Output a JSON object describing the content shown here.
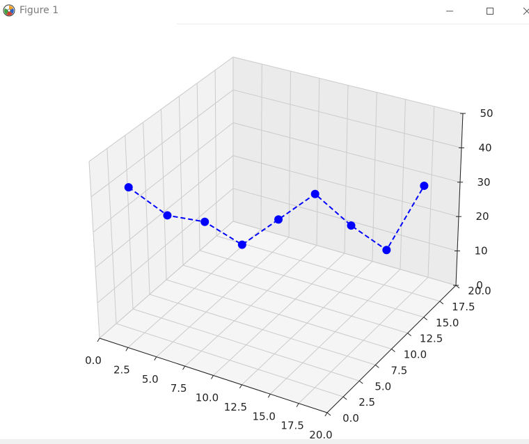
{
  "window": {
    "title": "Figure 1",
    "icons": [
      "matplotlib-logo-icon",
      "minimize-icon",
      "maximize-icon",
      "close-icon"
    ]
  },
  "colors": {
    "series": "#0000ff",
    "pane": "#f2f2f2",
    "grid": "#cbcbcb"
  },
  "chart_data": {
    "type": "line",
    "projection": "3d",
    "title": "",
    "xlabel": "",
    "ylabel": "",
    "zlabel": "",
    "xlim": [
      0,
      20
    ],
    "ylim": [
      0,
      20
    ],
    "zlim": [
      0,
      50
    ],
    "grid": true,
    "legend": "none",
    "x_ticks": [
      "0.0",
      "2.5",
      "5.0",
      "7.5",
      "10.0",
      "12.5",
      "15.0",
      "17.5",
      "20.0"
    ],
    "y_ticks": [
      "0.0",
      "2.5",
      "5.0",
      "7.5",
      "10.0",
      "12.5",
      "15.0",
      "17.5",
      "20.0"
    ],
    "z_ticks": [
      "0",
      "10",
      "20",
      "30",
      "40",
      "50"
    ],
    "series": [
      {
        "line_style": "dashed",
        "marker": "circle",
        "x": [
          2,
          4,
          6,
          8,
          10,
          12,
          14,
          16,
          18
        ],
        "y": [
          2,
          4,
          6,
          8,
          10,
          12,
          14,
          16,
          18
        ],
        "z": [
          42,
          33,
          30,
          22,
          28,
          34,
          23,
          14,
          31
        ]
      }
    ]
  }
}
